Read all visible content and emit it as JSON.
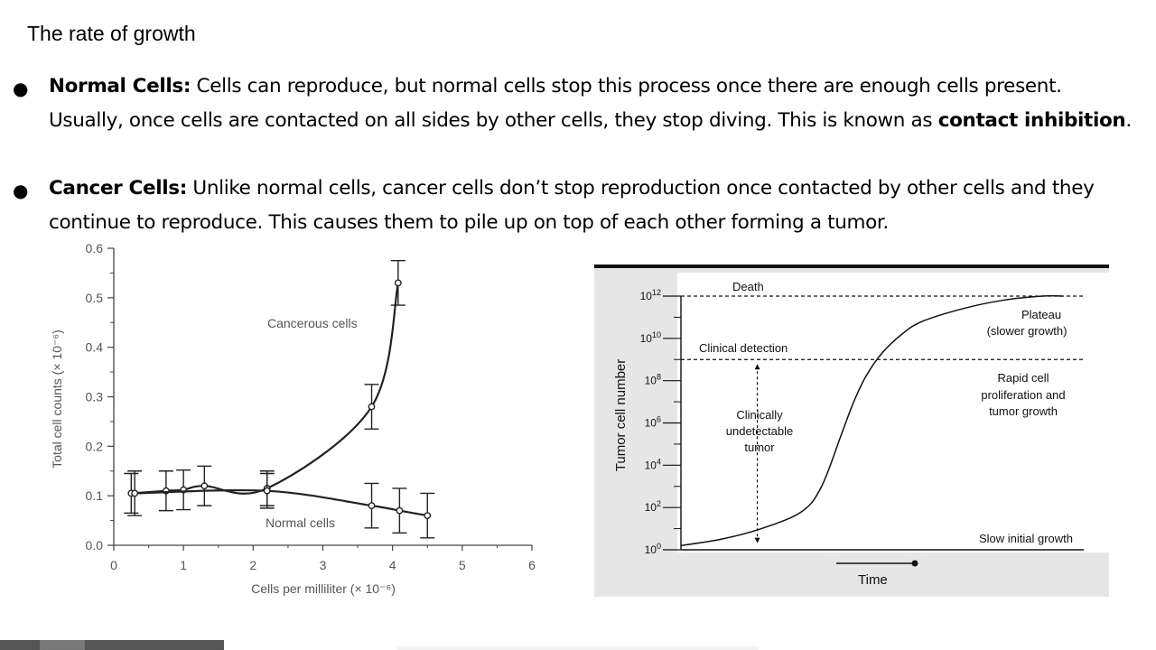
{
  "slide": {
    "title": "The rate of growth",
    "bullet_char": "●",
    "normal": {
      "label": "Normal Cells:",
      "line1": " Cells can reproduce, but normal cells stop this process once there are enough cells present.",
      "line2a": "Usually, once cells are contacted on all sides by other cells, they stop diving.  This is known as ",
      "emph": "contact inhibition",
      "line2b": "."
    },
    "cancer": {
      "label": "Cancer Cells:",
      "line1": " Unlike normal cells, cancer cells don’t stop reproduction once contacted by other cells and they",
      "line2": "continue to reproduce.  This causes them to pile up on top of each other forming a tumor."
    }
  },
  "colors": {
    "footer_dark": "#555555",
    "footer_mid": "#777777",
    "graph2_bg": "#e6e6e6"
  },
  "chart_data": [
    {
      "type": "line",
      "title": "",
      "xlabel": "Cells per milliliter (× 10⁻⁶)",
      "ylabel": "Total cell counts (× 10⁻⁶)",
      "xlim": [
        0,
        6
      ],
      "ylim": [
        0,
        0.6
      ],
      "x_ticks": [
        "0",
        "1",
        "2",
        "3",
        "4",
        "5",
        "6"
      ],
      "y_ticks": [
        "0.0",
        "0.1",
        "0.2",
        "0.3",
        "0.4",
        "0.5",
        "0.6"
      ],
      "series": [
        {
          "name": "Cancerous cells",
          "x": [
            0.25,
            0.75,
            1.0,
            1.3,
            2.2,
            3.7,
            4.08
          ],
          "y": [
            0.105,
            0.11,
            0.112,
            0.12,
            0.115,
            0.28,
            0.53
          ],
          "err": [
            0.04,
            0.04,
            0.04,
            0.04,
            0.035,
            0.045,
            0.045
          ]
        },
        {
          "name": "Normal cells",
          "x": [
            0.3,
            2.2,
            3.7,
            4.1,
            4.5
          ],
          "y": [
            0.105,
            0.11,
            0.08,
            0.07,
            0.06
          ],
          "err": [
            0.045,
            0.035,
            0.045,
            0.045,
            0.045
          ]
        }
      ]
    },
    {
      "type": "line",
      "title": "",
      "xlabel": "Time",
      "ylabel": "Tumor cell number",
      "y_scale": "log10",
      "y_ticks": [
        {
          "base": "10",
          "exp": "0"
        },
        {
          "base": "10",
          "exp": "2"
        },
        {
          "base": "10",
          "exp": "4"
        },
        {
          "base": "10",
          "exp": "6"
        },
        {
          "base": "10",
          "exp": "8"
        },
        {
          "base": "10",
          "exp": "10"
        },
        {
          "base": "10",
          "exp": "12"
        }
      ],
      "ylim_log10": [
        0,
        12
      ],
      "xlim": [
        0,
        100
      ],
      "series": [
        {
          "name": "Tumor growth",
          "x": [
            0,
            10,
            20,
            30,
            35,
            40,
            43,
            46,
            50,
            55,
            60,
            70,
            80,
            90,
            95
          ],
          "y": [
            0.2,
            0.5,
            1.0,
            1.8,
            3.0,
            5.5,
            7.0,
            8.2,
            9.3,
            10.2,
            10.8,
            11.4,
            11.8,
            12.0,
            12.0
          ]
        }
      ],
      "reference_lines": [
        {
          "label": "Death",
          "y_log10": 12
        },
        {
          "label": "Clinical detection",
          "y_log10": 9
        }
      ],
      "annotations": [
        {
          "text_lines": [
            "Plateau",
            "(slower growth)"
          ]
        },
        {
          "text_lines": [
            "Rapid cell",
            "proliferation and",
            "tumor growth"
          ]
        },
        {
          "text_lines": [
            "Clinically",
            "undetectable",
            "tumor"
          ]
        },
        {
          "text_lines": [
            "Slow initial growth"
          ]
        }
      ]
    }
  ]
}
